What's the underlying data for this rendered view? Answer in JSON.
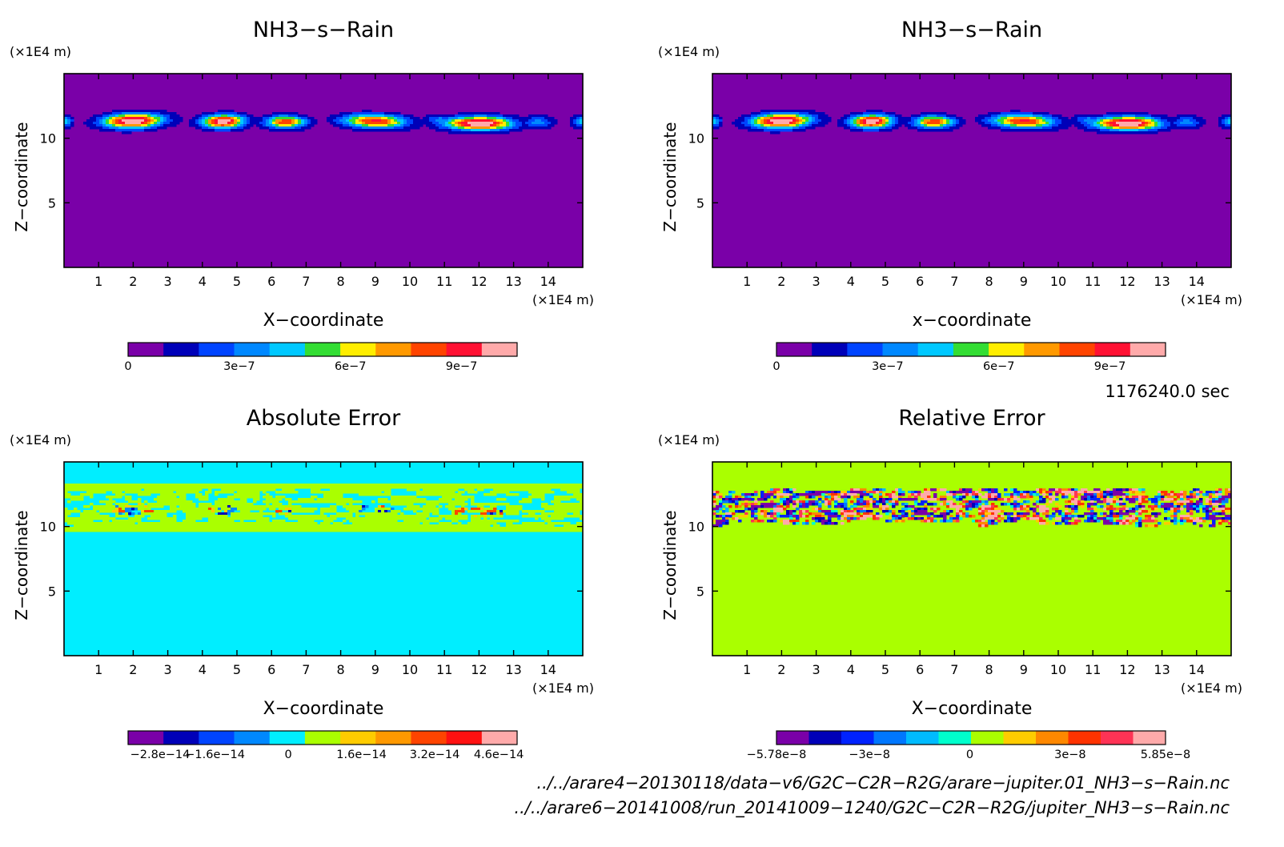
{
  "chart_data": [
    {
      "type": "heatmap",
      "title": "NH3−s−Rain",
      "xlabel": "X−coordinate",
      "ylabel": "Z−coordinate",
      "x_unit": "(×1E4 m)",
      "y_unit": "(×1E4 m)",
      "xlim": [
        0,
        15
      ],
      "ylim": [
        0,
        15
      ],
      "x_ticks": [
        1,
        2,
        3,
        4,
        5,
        6,
        7,
        8,
        9,
        10,
        11,
        12,
        13,
        14
      ],
      "y_ticks": [
        5,
        10
      ],
      "field": "cloud-rows",
      "colorbar": {
        "colors": [
          "#7a00a8",
          "#0000b8",
          "#0044ff",
          "#0088ff",
          "#00c8ff",
          "#33dd33",
          "#ffee00",
          "#ff9900",
          "#ff4400",
          "#ff1133",
          "#ffaaaa"
        ],
        "tick_labels": [
          "0",
          "3e−7",
          "6e−7",
          "9e−7"
        ],
        "tick_values": [
          0,
          3e-07,
          6e-07,
          9e-07
        ],
        "range": [
          0,
          1.05e-06
        ]
      }
    },
    {
      "type": "heatmap",
      "title": "NH3−s−Rain",
      "xlabel": "x−coordinate",
      "ylabel": "Z−coordinate",
      "x_unit": "(×1E4 m)",
      "y_unit": "(×1E4 m)",
      "xlim": [
        0,
        15
      ],
      "ylim": [
        0,
        15
      ],
      "x_ticks": [
        1,
        2,
        3,
        4,
        5,
        6,
        7,
        8,
        9,
        10,
        11,
        12,
        13,
        14
      ],
      "y_ticks": [
        5,
        10
      ],
      "field": "cloud-rows",
      "colorbar": {
        "colors": [
          "#7a00a8",
          "#0000b8",
          "#0044ff",
          "#0088ff",
          "#00c8ff",
          "#33dd33",
          "#ffee00",
          "#ff9900",
          "#ff4400",
          "#ff1133",
          "#ffaaaa"
        ],
        "tick_labels": [
          "0",
          "3e−7",
          "6e−7",
          "9e−7"
        ],
        "tick_values": [
          0,
          3e-07,
          6e-07,
          9e-07
        ],
        "range": [
          0,
          1.05e-06
        ]
      }
    },
    {
      "type": "heatmap",
      "title": "Absolute Error",
      "xlabel": "X−coordinate",
      "ylabel": "Z−coordinate",
      "x_unit": "(×1E4 m)",
      "y_unit": "(×1E4 m)",
      "xlim": [
        0,
        15
      ],
      "ylim": [
        0,
        15
      ],
      "x_ticks": [
        1,
        2,
        3,
        4,
        5,
        6,
        7,
        8,
        9,
        10,
        11,
        12,
        13,
        14
      ],
      "y_ticks": [
        5,
        10
      ],
      "field": "noise-band-sparse",
      "colorbar": {
        "colors": [
          "#7a00a8",
          "#0000b8",
          "#0044ff",
          "#0088ff",
          "#00eeff",
          "#aaff00",
          "#ffcc00",
          "#ff9900",
          "#ff4400",
          "#ff1111",
          "#ffaaaa"
        ],
        "tick_labels": [
          "−2.8e−14",
          "−1.6e−14",
          "0",
          "1.6e−14",
          "3.2e−14",
          "4.6e−14"
        ],
        "tick_values": [
          -2.8e-14,
          -1.6e-14,
          0,
          1.6e-14,
          3.2e-14,
          4.6e-14
        ],
        "range": [
          -3.5e-14,
          5e-14
        ]
      }
    },
    {
      "type": "heatmap",
      "title": "Relative Error",
      "xlabel": "X−coordinate",
      "ylabel": "Z−coordinate",
      "x_unit": "(×1E4 m)",
      "y_unit": "(×1E4 m)",
      "xlim": [
        0,
        15
      ],
      "ylim": [
        0,
        15
      ],
      "x_ticks": [
        1,
        2,
        3,
        4,
        5,
        6,
        7,
        8,
        9,
        10,
        11,
        12,
        13,
        14
      ],
      "y_ticks": [
        5,
        10
      ],
      "field": "noise-band-dense",
      "colorbar": {
        "colors": [
          "#7a00a8",
          "#0000b8",
          "#0022ff",
          "#0077ff",
          "#00bbff",
          "#00ffcc",
          "#aaff00",
          "#ffcc00",
          "#ff8800",
          "#ff3300",
          "#ff3355",
          "#ffaaaa"
        ],
        "tick_labels": [
          "−5.78e−8",
          "−3e−8",
          "0",
          "3e−8",
          "5.85e−8"
        ],
        "tick_values": [
          -5.78e-08,
          -3e-08,
          0,
          3e-08,
          5.85e-08
        ],
        "range": [
          -5.78e-08,
          5.85e-08
        ]
      }
    }
  ],
  "time_label": "1176240.0 sec",
  "files": [
    "../../arare4−20130118/data−v6/G2C−C2R−R2G/arare−jupiter.01_NH3−s−Rain.nc",
    "../../arare6−20141008/run_20141009−1240/G2C−C2R−R2G/jupiter_NH3−s−Rain.nc"
  ]
}
